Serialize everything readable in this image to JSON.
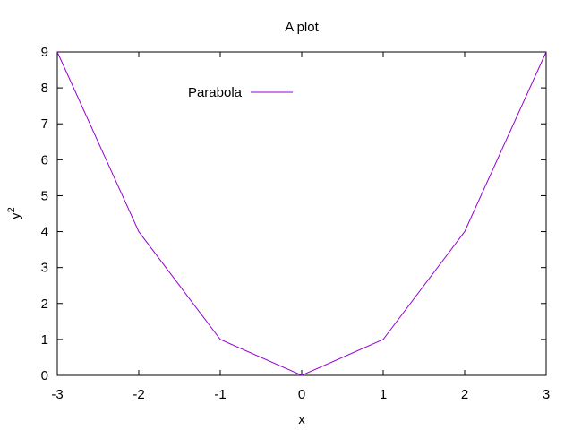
{
  "chart_data": {
    "type": "line",
    "title": "A plot",
    "xlabel": "x",
    "ylabel": "y",
    "ylabel_superscript": "2",
    "x": [
      -3,
      -2,
      -1,
      0,
      1,
      2,
      3
    ],
    "series": [
      {
        "name": "Parabola",
        "values": [
          9,
          4,
          1,
          0,
          1,
          4,
          9
        ],
        "color": "#9400d3"
      }
    ],
    "xlim": [
      -3,
      3
    ],
    "ylim": [
      0,
      9
    ],
    "xticks": [
      -3,
      -2,
      -1,
      0,
      1,
      2,
      3
    ],
    "xtick_labels": [
      "-3",
      "-2",
      "-1",
      "0",
      "1",
      "2",
      "3"
    ],
    "yticks": [
      0,
      1,
      2,
      3,
      4,
      5,
      6,
      7,
      8,
      9
    ],
    "ytick_labels": [
      "0",
      "1",
      "2",
      "3",
      "4",
      "5",
      "6",
      "7",
      "8",
      "9"
    ],
    "grid": false,
    "legend_position": "top-left",
    "axis_color": "#000000"
  }
}
